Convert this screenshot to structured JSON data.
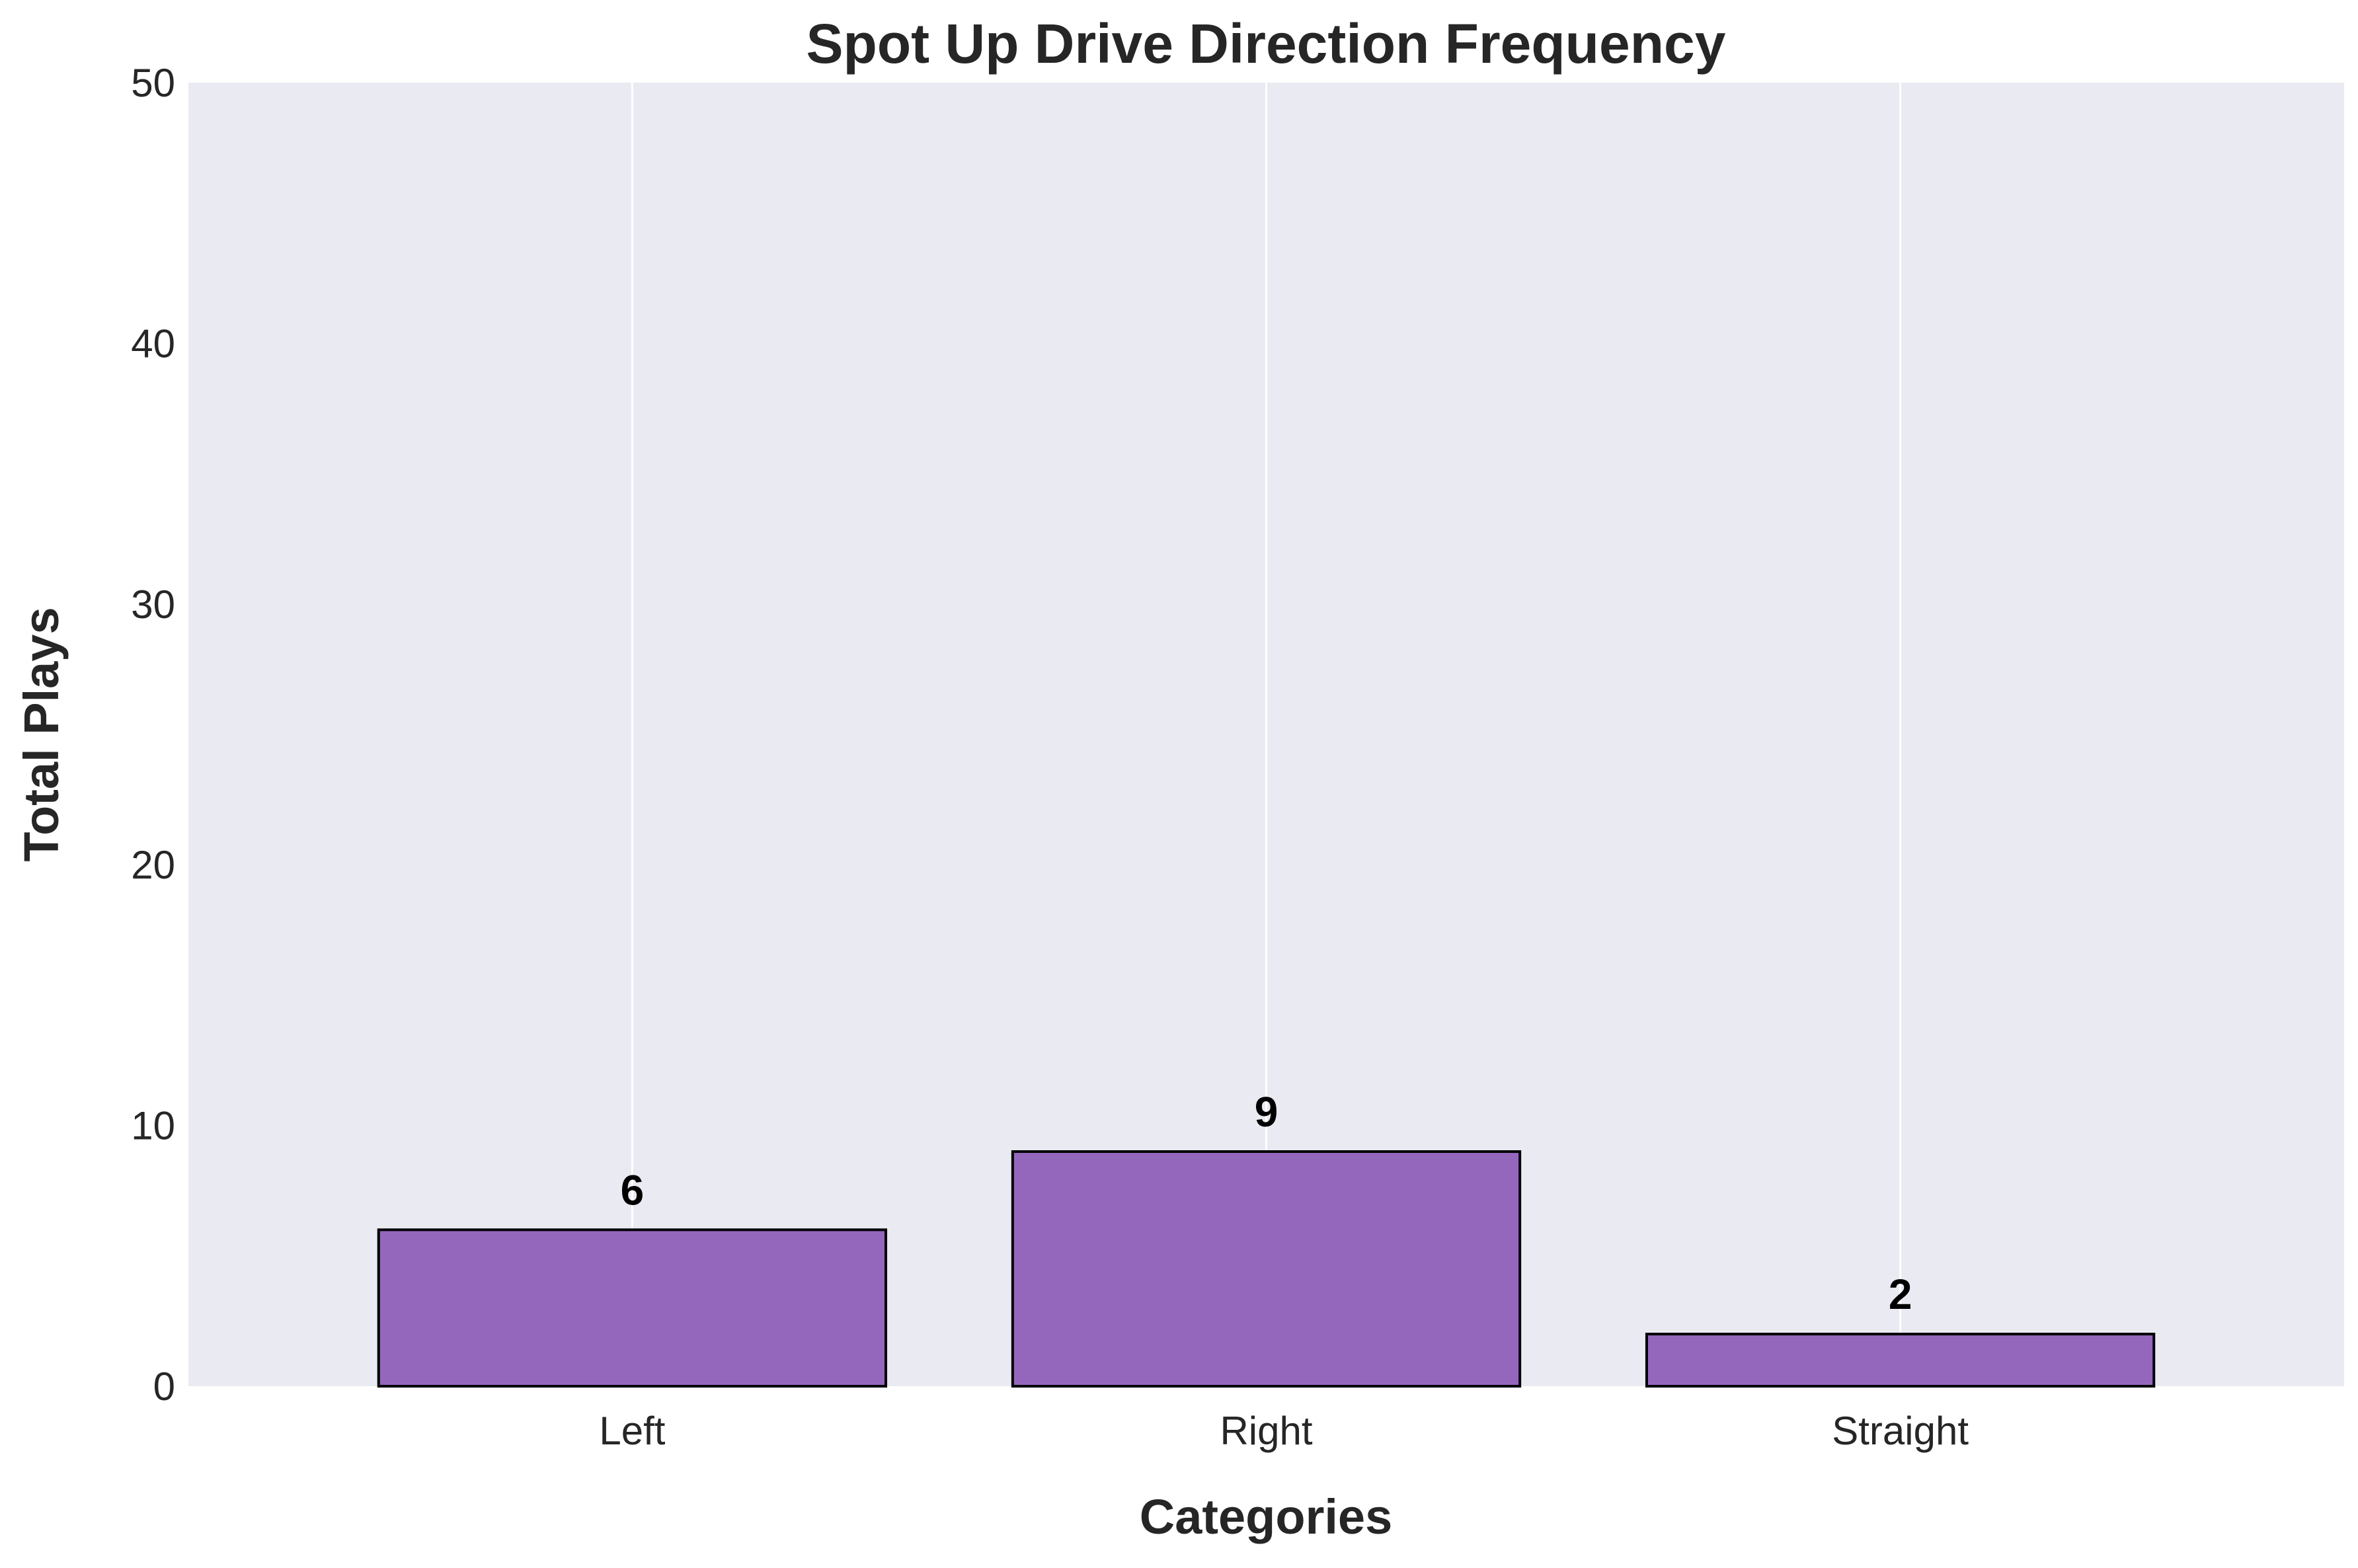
{
  "chart_data": {
    "type": "bar",
    "title": "Spot Up Drive Direction Frequency",
    "xlabel": "Categories",
    "ylabel": "Total Plays",
    "categories": [
      "Left",
      "Right",
      "Straight"
    ],
    "values": [
      6,
      9,
      2
    ],
    "data_labels": [
      "6",
      "9",
      "2"
    ],
    "ylim": [
      0,
      50
    ],
    "yticks": [
      0,
      10,
      20,
      30,
      40,
      50
    ],
    "ytick_labels": [
      "0",
      "10",
      "20",
      "30",
      "40",
      "50"
    ],
    "grid": "vertical",
    "colors": {
      "bar_fill": "#9467bd",
      "bar_edge": "#000000",
      "plot_background": "#eaeaf2",
      "grid": "#ffffff"
    }
  }
}
